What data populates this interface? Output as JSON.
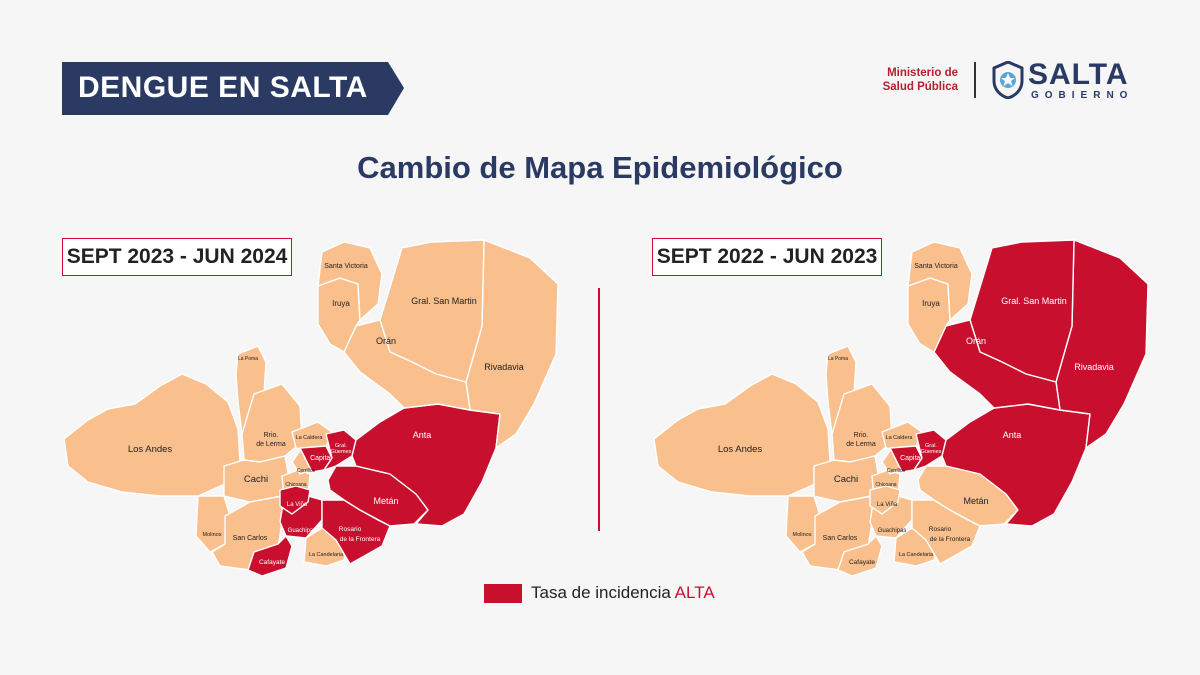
{
  "header": {
    "banner": "DENGUE EN SALTA",
    "ministry_line1": "Ministerio de",
    "ministry_line2": "Salud Pública",
    "logo_name": "SALTA",
    "logo_sub": "GOBIERNO"
  },
  "title": "Cambio de Mapa Epidemiológico",
  "colors": {
    "alta": "#c8102e",
    "base": "#f9bf8c",
    "navy": "#2a3a63"
  },
  "maps": [
    {
      "period": "SEPT 2023 - JUN 2024",
      "alta": [
        "Anta",
        "Metán",
        "Rosario de la Frontera",
        "Capital",
        "La Viña",
        "Cafayate",
        "Guachipas",
        "Gral. Güemes"
      ]
    },
    {
      "period": "SEPT 2022 - JUN 2023",
      "alta": [
        "Orán",
        "Gral. San Martín",
        "Rivadavia",
        "Anta",
        "Capital",
        "Gral. Güemes"
      ]
    }
  ],
  "department_labels": {
    "santa_victoria": "Santa Victoria",
    "iruya": "Iruya",
    "gral_san_martin": "Gral. San Martin",
    "oran": "Orán",
    "rivadavia": "Rivadavia",
    "la_poma": "La Poma",
    "los_andes": "Los Andes",
    "rosario_lerma_1": "Rrio.",
    "rosario_lerma_2": "de Lerma",
    "la_caldera": "La Caldera",
    "gral_guemes_1": "Gral.",
    "gral_guemes_2": "Güemes",
    "capital": "Capital",
    "cerrillos": "Cerrillos",
    "anta": "Anta",
    "cachi": "Cachi",
    "chicoana": "Chicoana",
    "metan": "Metán",
    "la_vina": "La Viña",
    "molinos": "Molinos",
    "san_carlos": "San Carlos",
    "guachipas": "Guachipas",
    "rosario_frontera_1": "Rosario",
    "rosario_frontera_2": "de la Frontera",
    "la_candelaria": "La Candelaria",
    "cafayate": "Cafayate"
  },
  "legend": {
    "label": "Tasa de incidencia",
    "level": "ALTA"
  }
}
